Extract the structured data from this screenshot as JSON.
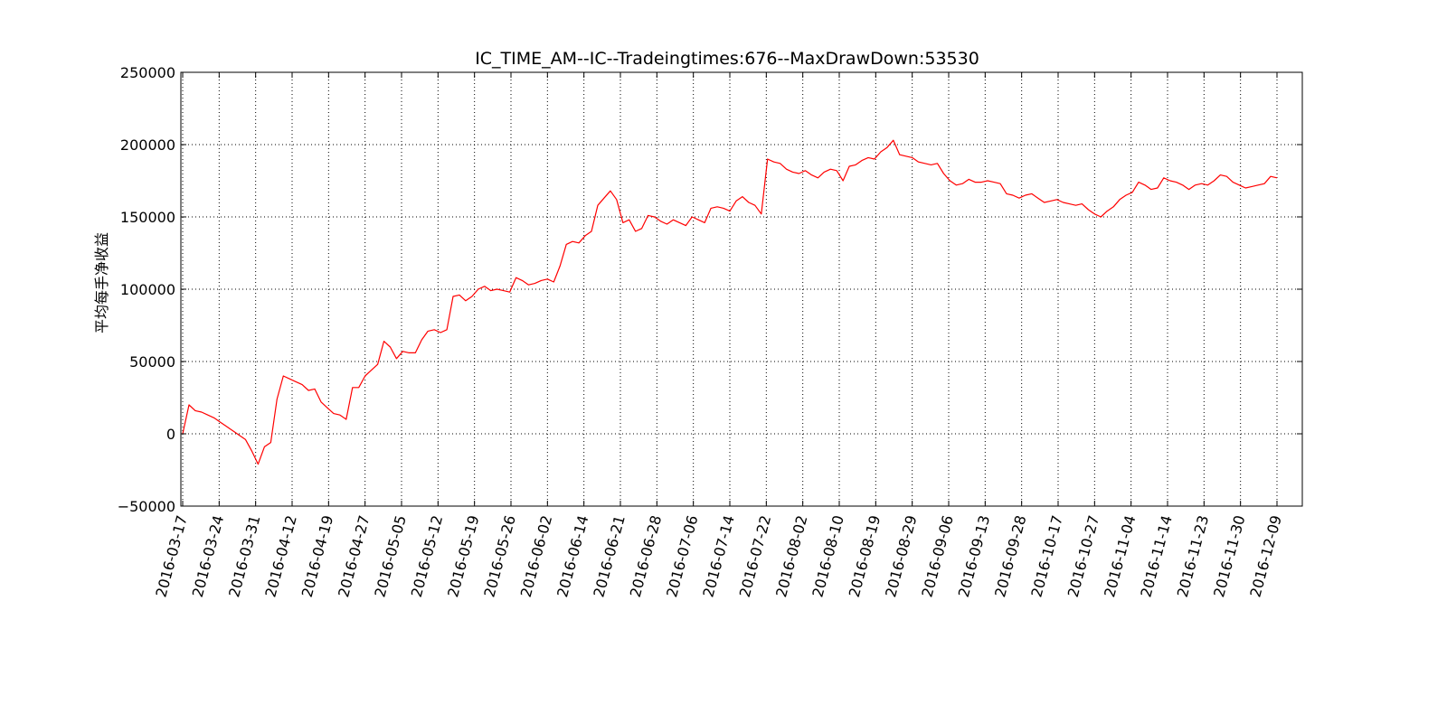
{
  "chart_data": {
    "type": "line",
    "title": "IC_TIME_AM--IC--Tradeingtimes:676--MaxDrawDown:53530",
    "xlabel": "",
    "ylabel": "平均每手净收益",
    "ylim": [
      -50000,
      250000
    ],
    "yticks": [
      -50000,
      0,
      50000,
      100000,
      150000,
      200000,
      250000
    ],
    "ytick_labels": [
      "−50000",
      "0",
      "50000",
      "100000",
      "150000",
      "200000",
      "250000"
    ],
    "xtick_labels": [
      "2016-03-17",
      "2016-03-24",
      "2016-03-31",
      "2016-04-12",
      "2016-04-19",
      "2016-04-27",
      "2016-05-05",
      "2016-05-12",
      "2016-05-19",
      "2016-05-26",
      "2016-06-02",
      "2016-06-14",
      "2016-06-21",
      "2016-06-28",
      "2016-07-06",
      "2016-07-14",
      "2016-07-22",
      "2016-08-02",
      "2016-08-10",
      "2016-08-19",
      "2016-08-29",
      "2016-09-06",
      "2016-09-13",
      "2016-09-28",
      "2016-10-17",
      "2016-10-27",
      "2016-11-04",
      "2016-11-14",
      "2016-11-23",
      "2016-11-30",
      "2016-12-09"
    ],
    "grid": true,
    "line_color": "#ff0000",
    "series": [
      {
        "values": [
          0,
          20000,
          16000,
          15000,
          13000,
          11000,
          8000,
          5000,
          2000,
          -1000,
          -4000,
          -12000,
          -21000,
          -9000,
          -6000,
          24000,
          40000,
          38000,
          36000,
          34000,
          30000,
          31000,
          22000,
          18000,
          14000,
          13000,
          10000,
          32000,
          32000,
          40000,
          44000,
          48000,
          64000,
          60000,
          52000,
          57000,
          56000,
          56000,
          65000,
          71000,
          72000,
          70000,
          72000,
          95000,
          96000,
          92000,
          95000,
          100000,
          102000,
          99000,
          100000,
          99000,
          98000,
          108000,
          106000,
          103000,
          104000,
          106000,
          107000,
          105000,
          116000,
          131000,
          133000,
          132000,
          137000,
          140000,
          158000,
          163000,
          168000,
          162000,
          146000,
          148000,
          140000,
          142000,
          151000,
          150000,
          147000,
          145000,
          148000,
          146000,
          144000,
          150000,
          148000,
          146000,
          156000,
          157000,
          156000,
          154000,
          161000,
          164000,
          160000,
          158000,
          152000,
          190000,
          188000,
          187000,
          183000,
          181000,
          180000,
          182000,
          179000,
          177000,
          181000,
          183000,
          182000,
          175000,
          185000,
          186000,
          189000,
          191000,
          190000,
          195000,
          198000,
          203000,
          193000,
          192000,
          191000,
          188000,
          187000,
          186000,
          187000,
          180000,
          175000,
          172000,
          173000,
          176000,
          174000,
          174000,
          175000,
          174000,
          173000,
          166000,
          165000,
          163000,
          165000,
          166000,
          163000,
          160000,
          161000,
          162000,
          160000,
          159000,
          158000,
          159000,
          155000,
          152000,
          150000,
          154000,
          157000,
          162000,
          165000,
          167000,
          174000,
          172000,
          169000,
          170000,
          177000,
          175000,
          174000,
          172000,
          169000,
          172000,
          173000,
          172000,
          175000,
          179000,
          178000,
          174000,
          172000,
          170000,
          171000,
          172000,
          173000,
          178000,
          177000
        ]
      }
    ]
  }
}
